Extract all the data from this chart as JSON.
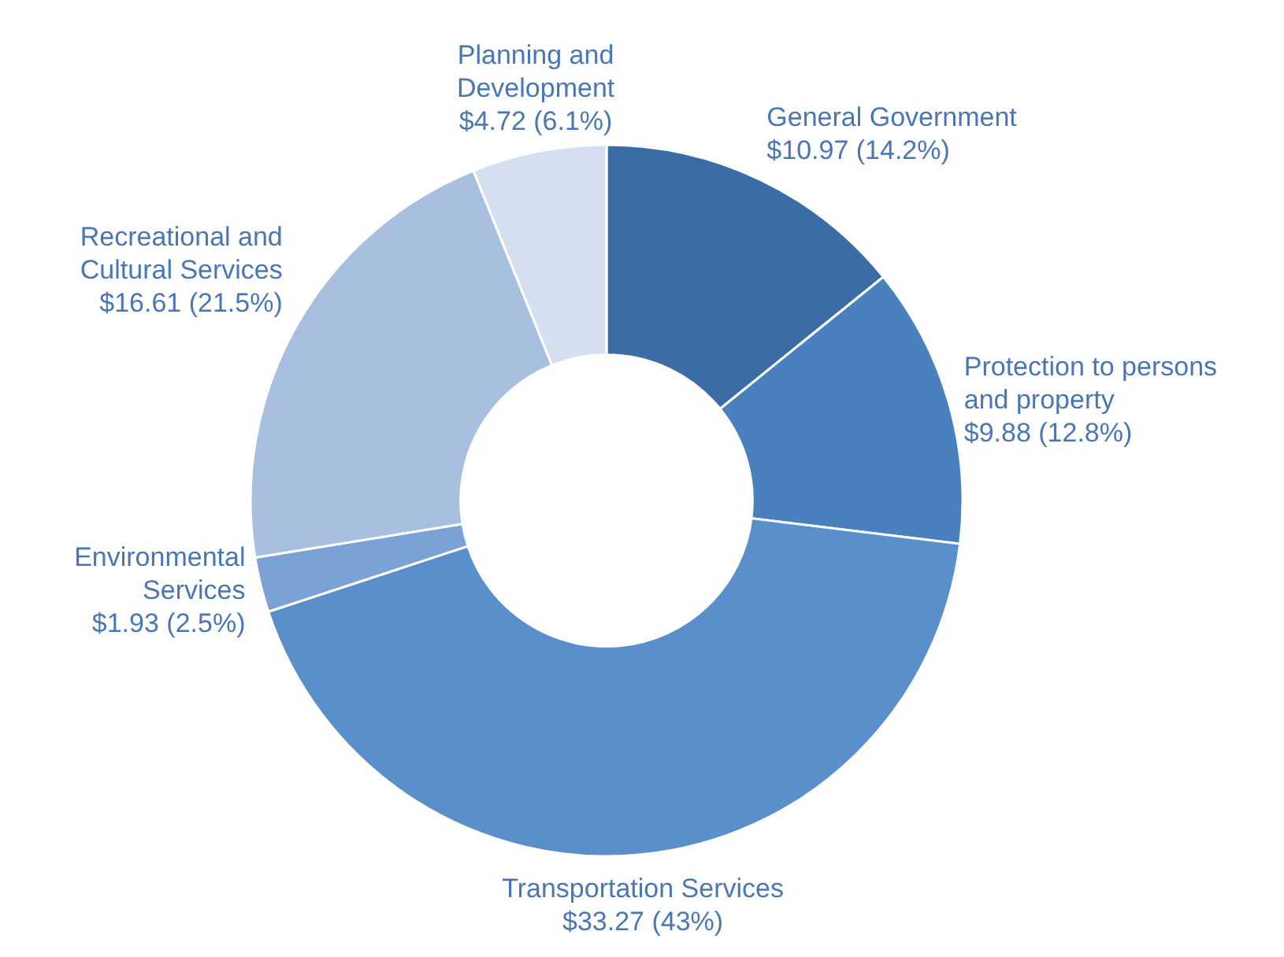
{
  "chart_data": {
    "type": "donut",
    "categories": [
      "General Government",
      "Protection to persons and property",
      "Transportation Services",
      "Environmental Services",
      "Recreational and Cultural Services",
      "Planning and Development"
    ],
    "values": [
      10.97,
      9.88,
      33.27,
      1.93,
      16.61,
      4.72
    ],
    "value_labels": [
      "$10.97 (14.2%)",
      "$9.88 (12.8%)",
      "$33.27 (43%)",
      "$1.93 (2.5%)",
      "$16.61 (21.5%)",
      "$4.72 (6.1%)"
    ],
    "colors": [
      "#3b6ca6",
      "#4a80bd",
      "#5a8fcb",
      "#7aa2d5",
      "#a8bfe0",
      "#d4e0f0"
    ]
  }
}
